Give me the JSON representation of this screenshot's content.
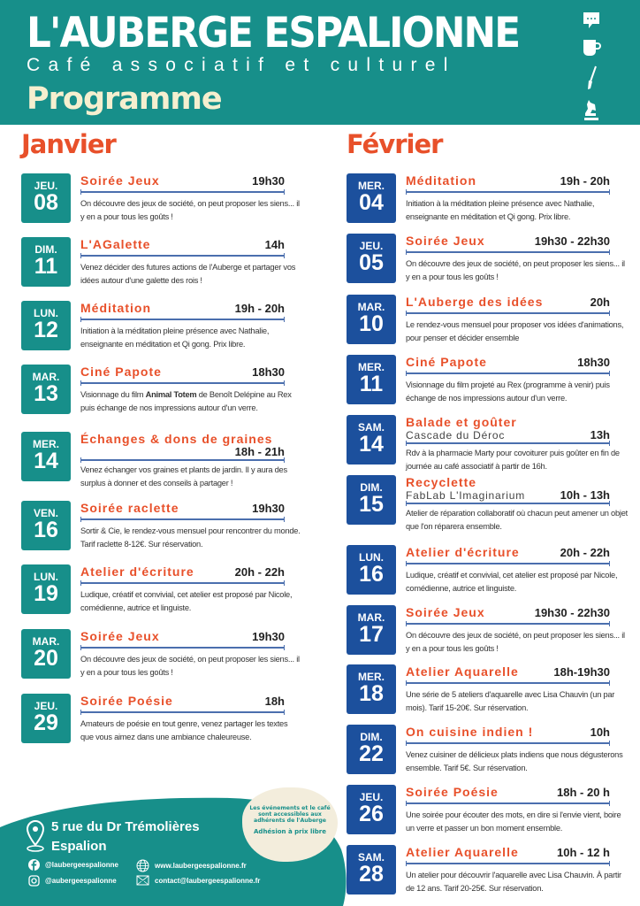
{
  "header": {
    "title": "L'AUBERGE ESPALIONNE",
    "subtitle": "Café associatif et culturel",
    "programme": "Programme",
    "icons": [
      "speech-bubble-icon",
      "coffee-cup-icon",
      "paintbrush-icon",
      "chess-knight-icon"
    ]
  },
  "colors": {
    "teal": "#178f8a",
    "blue": "#1c509d",
    "orange": "#e8502a",
    "cream": "#f5efcf"
  },
  "months": [
    {
      "name": "Janvier",
      "events": [
        {
          "day": "JEU.",
          "num": "08",
          "title": "Soirée Jeux",
          "time": "19h30",
          "desc": [
            {
              "t": "On découvre des jeux de société, on peut proposer les siens... il y en a pour tous les goûts !"
            }
          ]
        },
        {
          "day": "DIM.",
          "num": "11",
          "title": "L'AGalette",
          "time": "14h",
          "desc": [
            {
              "t": "Venez décider des futures actions de l'Auberge et partager vos idées autour d'une galette des rois !"
            }
          ]
        },
        {
          "day": "LUN.",
          "num": "12",
          "title": "Méditation",
          "time": "19h - 20h",
          "desc": [
            {
              "t": "Initiation à la méditation pleine présence avec Nathalie, enseignante en méditation et Qi gong. Prix libre."
            }
          ]
        },
        {
          "day": "MAR.",
          "num": "13",
          "title": "Ciné Papote",
          "time": "18h30",
          "desc": [
            {
              "t": "Visionnage du film "
            },
            {
              "t": "Animal Totem",
              "b": true
            },
            {
              "t": " de Benoît Delépine au Rex puis échange de nos impressions autour d'un verre."
            }
          ]
        },
        {
          "day": "MER.",
          "num": "14",
          "title": "Échanges & dons de graines",
          "time": "18h - 21h",
          "desc": [
            {
              "t": "Venez échanger vos graines et plants de jardin. Il y aura des surplus à donner et des conseils à partager !"
            }
          ]
        },
        {
          "day": "VEN.",
          "num": "16",
          "title": "Soirée raclette",
          "time": "19h30",
          "desc": [
            {
              "t": "Sortir & Cie, le rendez-vous mensuel pour rencontrer du monde. Tarif raclette 8-12€. Sur réservation."
            }
          ]
        },
        {
          "day": "LUN.",
          "num": "19",
          "title": "Atelier d'écriture",
          "time": "20h - 22h",
          "desc": [
            {
              "t": "Ludique, créatif et convivial, cet atelier est proposé par Nicole, comédienne, autrice et linguiste."
            }
          ]
        },
        {
          "day": "MAR.",
          "num": "20",
          "title": "Soirée Jeux",
          "time": "19h30",
          "desc": [
            {
              "t": "On découvre des jeux de société, on peut proposer les siens... il y en a pour tous les goûts !"
            }
          ]
        },
        {
          "day": "JEU.",
          "num": "29",
          "title": "Soirée Poésie",
          "time": "18h",
          "desc": [
            {
              "t": "Amateurs de poésie en tout genre, venez partager les textes que vous aimez dans une ambiance chaleureuse."
            }
          ]
        }
      ]
    },
    {
      "name": "Février",
      "events": [
        {
          "day": "MER.",
          "num": "04",
          "title": "Méditation",
          "time": "19h - 20h",
          "desc": [
            {
              "t": "Initiation à la méditation pleine présence avec Nathalie, enseignante en méditation et Qi gong. Prix libre."
            }
          ]
        },
        {
          "day": "JEU.",
          "num": "05",
          "title": "Soirée Jeux",
          "time": "19h30 - 22h30",
          "desc": [
            {
              "t": "On découvre des jeux de société, on peut proposer les siens... il y en a pour tous les goûts !"
            }
          ]
        },
        {
          "day": "MAR.",
          "num": "10",
          "title": "L'Auberge des idées",
          "time": "20h",
          "desc": [
            {
              "t": "Le rendez-vous mensuel pour proposer vos idées d'animations, pour penser et décider ensemble"
            }
          ]
        },
        {
          "day": "MER.",
          "num": "11",
          "title": "Ciné Papote",
          "time": "18h30",
          "desc": [
            {
              "t": "Visionnage du film projeté au Rex (programme à venir) puis échange de nos impressions autour d'un verre."
            }
          ]
        },
        {
          "day": "SAM.",
          "num": "14",
          "title": "Balade et goûter",
          "subtitle": "Cascade du Déroc",
          "time": "13h",
          "desc": [
            {
              "t": "Rdv à la pharmacie Marty pour covoiturer puis goûter en fin de journée au café associatif à partir de 16h."
            }
          ]
        },
        {
          "day": "DIM.",
          "num": "15",
          "title": "Recyclette",
          "subtitle": "FabLab L'Imaginarium",
          "time": "10h - 13h",
          "desc": [
            {
              "t": "Atelier de réparation collaboratif où chacun peut amener un objet que l'on réparera ensemble."
            }
          ]
        },
        {
          "day": "LUN.",
          "num": "16",
          "title": "Atelier d'écriture",
          "time": "20h - 22h",
          "desc": [
            {
              "t": "Ludique, créatif et convivial, cet atelier est proposé par Nicole, comédienne, autrice et linguiste."
            }
          ]
        },
        {
          "day": "MAR.",
          "num": "17",
          "title": "Soirée Jeux",
          "time": "19h30 - 22h30",
          "desc": [
            {
              "t": "On découvre des jeux de société, on peut proposer les siens... il y en a pour tous les goûts !"
            }
          ]
        },
        {
          "day": "MER.",
          "num": "18",
          "title": "Atelier Aquarelle",
          "time": "18h-19h30",
          "desc": [
            {
              "t": "Une série de 5 ateliers d'aquarelle avec Lisa Chauvin (un par mois). Tarif 15-20€. Sur réservation."
            }
          ]
        },
        {
          "day": "DIM.",
          "num": "22",
          "title": "On cuisine indien !",
          "time": "10h",
          "desc": [
            {
              "t": "Venez cuisiner de délicieux plats indiens que nous dégusterons ensemble. Tarif 5€. Sur réservation."
            }
          ]
        },
        {
          "day": "JEU.",
          "num": "26",
          "title": "Soirée Poésie",
          "time": "18h - 20 h",
          "desc": [
            {
              "t": "Une soirée pour écouter des mots, en dire si l'envie vient, boire un verre et passer un bon moment ensemble."
            }
          ]
        },
        {
          "day": "SAM.",
          "num": "28",
          "title": "Atelier Aquarelle",
          "time": "10h - 12 h",
          "desc": [
            {
              "t": "Un atelier pour découvrir l'aquarelle avec Lisa Chauvin. À partir de 12 ans. Tarif 20-25€. Sur réservation."
            }
          ]
        }
      ]
    }
  ],
  "footer": {
    "address1": "5 rue du Dr Trémolières",
    "address2": "Espalion",
    "facebook": "@laubergeespalionne",
    "instagram": "@aubergeespalionne",
    "website": "www.laubergeespalionne.fr",
    "email": "contact@laubergeespalionne.fr",
    "note": "Les événements et le café sont accessibles aux adhérents de l'Auberge",
    "membership": "Adhésion à prix libre"
  }
}
